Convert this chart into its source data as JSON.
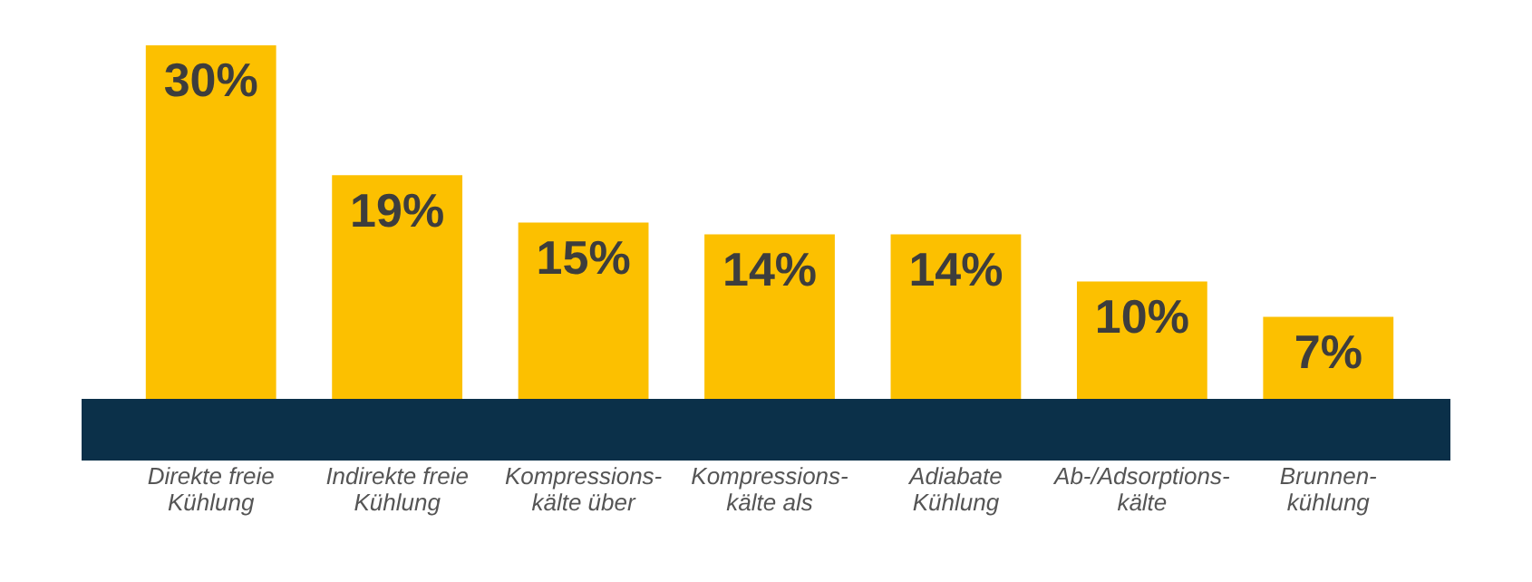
{
  "chart_data": {
    "type": "bar",
    "categories": [
      "Direkte freie\nKühlung",
      "Indirekte freie\nKühlung",
      "Kompressions-\nkälte über",
      "Kompressions-\nkälte als",
      "Adiabate\nKühlung",
      "Ab-/Adsorptions-\nkälte",
      "Brunnen-\nkühlung"
    ],
    "values": [
      30,
      19,
      15,
      14,
      14,
      10,
      7
    ],
    "value_labels": [
      "30%",
      "19%",
      "15%",
      "14%",
      "14%",
      "10%",
      "7%"
    ],
    "color": "#fcc000",
    "grid": false,
    "legend": false
  }
}
